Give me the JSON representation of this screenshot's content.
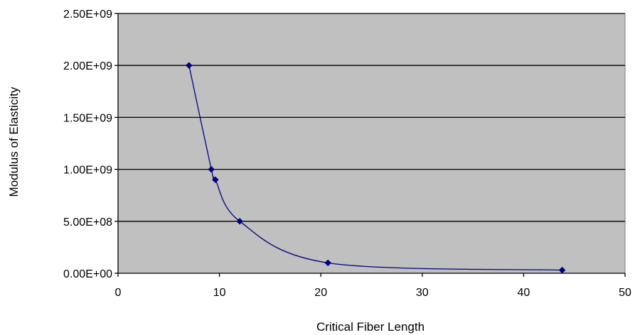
{
  "chart_data": {
    "type": "scatter",
    "title": "",
    "xlabel": "Critical Fiber Length",
    "ylabel": "Modulus of Elasticity",
    "xlim": [
      0,
      50
    ],
    "ylim": [
      0,
      2500000000
    ],
    "x_ticks": [
      0,
      10,
      20,
      30,
      40,
      50
    ],
    "y_ticks": [
      0,
      500000000,
      1000000000,
      1500000000,
      2000000000,
      2500000000
    ],
    "x_tick_labels": [
      "0",
      "10",
      "20",
      "30",
      "40",
      "50"
    ],
    "y_tick_labels": [
      "0.00E+00",
      "5.00E+08",
      "1.00E+09",
      "1.50E+09",
      "2.00E+09",
      "2.50E+09"
    ],
    "grid": "horizontal major gridlines",
    "legend": "none",
    "plot_background": "#c0c0c0",
    "series": [
      {
        "color": "#000080",
        "marker": "diamond",
        "line": "smoothed",
        "x": [
          7.0,
          9.2,
          9.6,
          12.0,
          20.7,
          43.8
        ],
        "y": [
          2000000000,
          1000000000,
          900000000,
          500000000,
          100000000,
          30000000
        ]
      }
    ]
  }
}
